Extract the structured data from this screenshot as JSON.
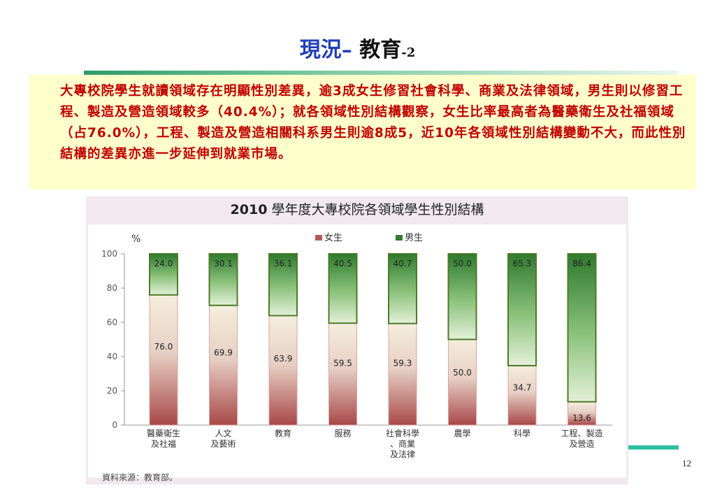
{
  "slide": {
    "title_part1": "現況–",
    "title_part2": " 教育",
    "title_part3": "-2",
    "body_text": "大專校院學生就讀領域存在明顯性別差異，逾3成女生修習社會科學、商業及法律領域，男生則以修習工程、製造及營造領域較多（40.4%）；就各領域性別結構觀察，女生比率最高者為醫藥衛生及社福領域（占76.0%），工程、製造及營造相關科系男生則逾8成5，近10年各領域性別結構變動不大，而此性別結構的差異亦進一步延伸到就業市場。",
    "page_number": "12"
  },
  "chart_data": {
    "type": "bar",
    "stacked": true,
    "title_year": "2010",
    "title_rest": " 學年度大專校院各領域學生性別結構",
    "ylabel": "%",
    "ylim": [
      0,
      100
    ],
    "yticks": [
      "0",
      "20",
      "40",
      "60",
      "80",
      "100"
    ],
    "categories": [
      [
        "醫藥衛生",
        "及社福"
      ],
      [
        "人文",
        "及藝術"
      ],
      [
        "教育"
      ],
      [
        "服務"
      ],
      [
        "社會科學",
        "、商業",
        "及法律"
      ],
      [
        "農學"
      ],
      [
        "科學"
      ],
      [
        "工程、製造",
        "及營造"
      ]
    ],
    "series": [
      {
        "name": "女生",
        "color": "#b55a5a",
        "values": [
          76.0,
          69.9,
          63.9,
          59.5,
          59.3,
          50.0,
          34.7,
          13.6
        ]
      },
      {
        "name": "男生",
        "color": "#2f7d2f",
        "values": [
          24.0,
          30.1,
          36.1,
          40.5,
          40.7,
          50.0,
          65.3,
          86.4
        ]
      }
    ],
    "value_labels_female": [
      "76.0",
      "69.9",
      "63.9",
      "59.5",
      "59.3",
      "50.0",
      "34.7",
      "13.6"
    ],
    "value_labels_male": [
      "24.0",
      "30.1",
      "36.1",
      "40.5",
      "40.7",
      "50.0",
      "65.3",
      "86.4"
    ],
    "legend_position": "top",
    "grid": false,
    "source": "資料來源：教育部。"
  }
}
